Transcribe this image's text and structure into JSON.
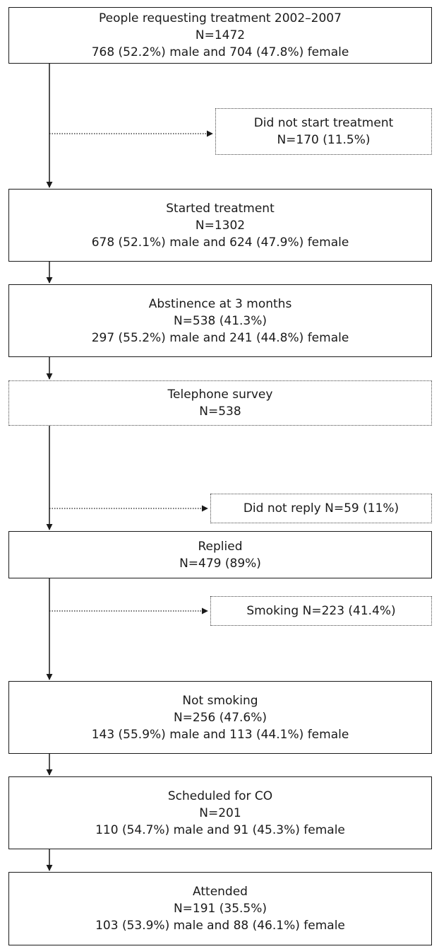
{
  "boxes": {
    "requesting": {
      "line1": "People requesting treatment 2002–2007",
      "line2": "N=1472",
      "line3": "768 (52.2%) male and 704 (47.8%) female"
    },
    "not_started": {
      "line1": "Did not start treatment",
      "line2": "N=170 (11.5%)"
    },
    "started": {
      "line1": "Started treatment",
      "line2": "N=1302",
      "line3": "678 (52.1%) male and 624 (47.9%) female"
    },
    "abstinence": {
      "line1": "Abstinence at 3 months",
      "line2": "N=538 (41.3%)",
      "line3": "297 (55.2%) male and 241 (44.8%) female"
    },
    "telephone": {
      "line1": "Telephone survey",
      "line2": "N=538"
    },
    "no_reply": {
      "line1": "Did not reply N=59 (11%)"
    },
    "replied": {
      "line1": "Replied",
      "line2": "N=479 (89%)"
    },
    "smoking": {
      "line1": "Smoking N=223 (41.4%)"
    },
    "not_smoking": {
      "line1": "Not smoking",
      "line2": "N=256 (47.6%)",
      "line3": "143 (55.9%) male and 113 (44.1%) female"
    },
    "scheduled": {
      "line1": "Scheduled for CO",
      "line2": "N=201",
      "line3": "110 (54.7%) male and 91 (45.3%) female"
    },
    "attended": {
      "line1": "Attended",
      "line2": "N=191 (35.5%)",
      "line3": "103 (53.9%) male and 88 (46.1%) female"
    }
  }
}
